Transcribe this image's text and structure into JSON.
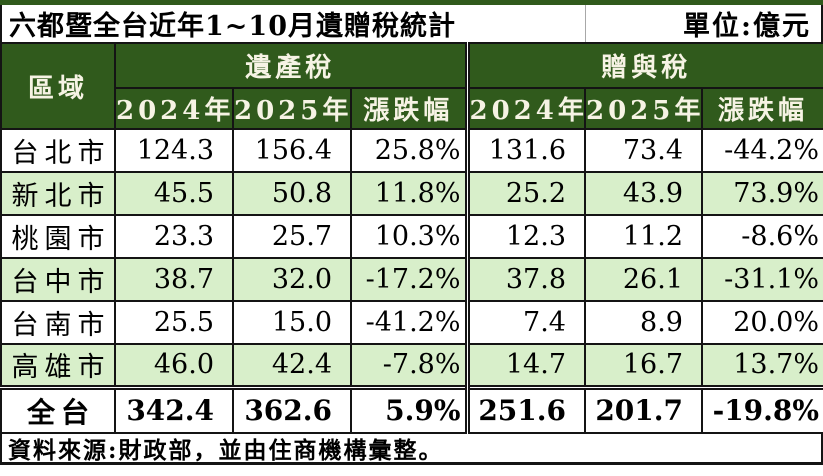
{
  "title": "六都暨全台近年1~10月遺贈稅統計",
  "unit_label": "單位:億元",
  "table": {
    "region_header": "區域",
    "groups": [
      {
        "label": "遺產稅"
      },
      {
        "label": "贈與稅"
      }
    ],
    "year_headers": [
      "2024年",
      "2025年",
      "漲跌幅",
      "2024年",
      "2025年",
      "漲跌幅"
    ],
    "rows": [
      {
        "region": "台北市",
        "values": [
          "124.3",
          "156.4",
          "25.8%",
          "131.6",
          "73.4",
          "-44.2%"
        ]
      },
      {
        "region": "新北市",
        "values": [
          "45.5",
          "50.8",
          "11.8%",
          "25.2",
          "43.9",
          "73.9%"
        ]
      },
      {
        "region": "桃園市",
        "values": [
          "23.3",
          "25.7",
          "10.3%",
          "12.3",
          "11.2",
          "-8.6%"
        ]
      },
      {
        "region": "台中市",
        "values": [
          "38.7",
          "32.0",
          "-17.2%",
          "37.8",
          "26.1",
          "-31.1%"
        ]
      },
      {
        "region": "台南市",
        "values": [
          "25.5",
          "15.0",
          "-41.2%",
          "7.4",
          "8.9",
          "20.0%"
        ]
      },
      {
        "region": "高雄市",
        "values": [
          "46.0",
          "42.4",
          "-7.8%",
          "14.7",
          "16.7",
          "13.7%"
        ]
      }
    ],
    "total_row": {
      "region": "全台",
      "values": [
        "342.4",
        "362.6",
        "5.9%",
        "251.6",
        "201.7",
        "-19.8%"
      ]
    }
  },
  "footer": {
    "source": "資料來源:財政部，並由住商機構彙整。"
  },
  "colors": {
    "header_green": "#305a1c",
    "row_light_green": "#d8efca",
    "header_text": "#f6f3e4",
    "border": "#141414",
    "body_text": "#000000"
  },
  "chart_data": {
    "type": "table",
    "title": "六都暨全台近年1~10月遺贈稅統計",
    "unit": "億元",
    "column_groups": [
      "遺產稅",
      "贈與稅"
    ],
    "columns": [
      "區域",
      "遺產稅 2024年",
      "遺產稅 2025年",
      "遺產稅 漲跌幅",
      "贈與稅 2024年",
      "贈與稅 2025年",
      "贈與稅 漲跌幅"
    ],
    "rows": [
      [
        "台北市",
        124.3,
        156.4,
        "25.8%",
        131.6,
        73.4,
        "-44.2%"
      ],
      [
        "新北市",
        45.5,
        50.8,
        "11.8%",
        25.2,
        43.9,
        "73.9%"
      ],
      [
        "桃園市",
        23.3,
        25.7,
        "10.3%",
        12.3,
        11.2,
        "-8.6%"
      ],
      [
        "台中市",
        38.7,
        32.0,
        "-17.2%",
        37.8,
        26.1,
        "-31.1%"
      ],
      [
        "台南市",
        25.5,
        15.0,
        "-41.2%",
        7.4,
        8.9,
        "20.0%"
      ],
      [
        "高雄市",
        46.0,
        42.4,
        "-7.8%",
        14.7,
        16.7,
        "13.7%"
      ],
      [
        "全台",
        342.4,
        362.6,
        "5.9%",
        251.6,
        201.7,
        "-19.8%"
      ]
    ],
    "source": "資料來源:財政部，並由住商機構彙整。"
  }
}
